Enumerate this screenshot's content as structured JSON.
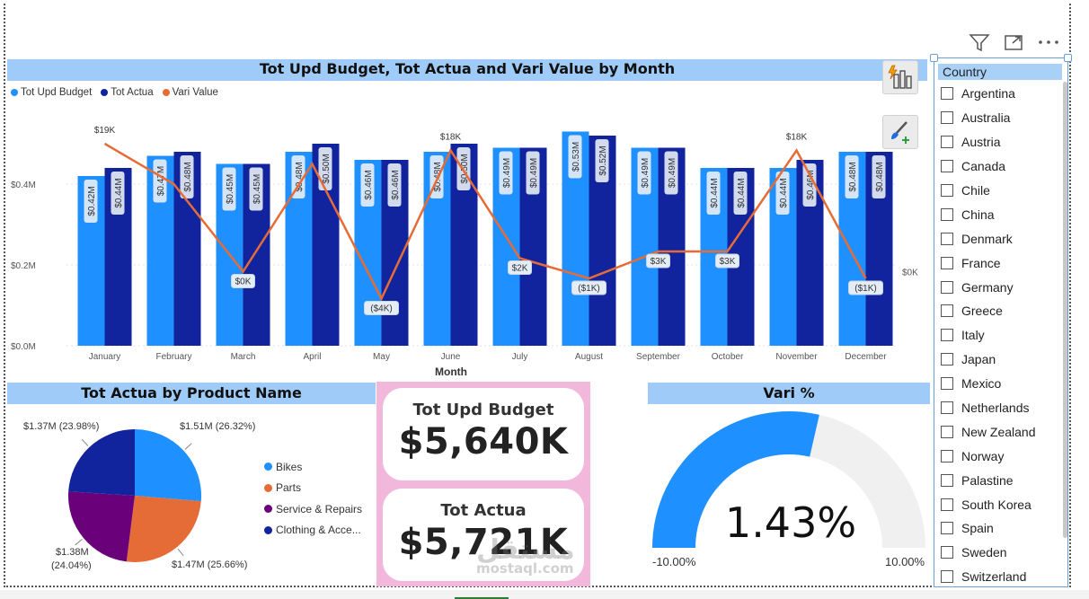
{
  "combo_chart": {
    "title": "Tot Upd Budget, Tot Actua and Vari Value by Month",
    "legend": [
      {
        "label": "Tot Upd Budget",
        "color": "#1e90ff"
      },
      {
        "label": "Tot Actua",
        "color": "#12239e"
      },
      {
        "label": "Vari Value",
        "color": "#e66c37"
      }
    ],
    "x_axis_title": "Month"
  },
  "chart_data": [
    {
      "type": "bar",
      "title": "Tot Upd Budget, Tot Actua and Vari Value by Month",
      "xlabel": "Month",
      "ylabel": "",
      "categories": [
        "January",
        "February",
        "March",
        "April",
        "May",
        "June",
        "July",
        "August",
        "September",
        "October",
        "November",
        "December"
      ],
      "series": [
        {
          "name": "Tot Upd Budget",
          "color": "#1e90ff",
          "values": [
            0.42,
            0.47,
            0.45,
            0.48,
            0.46,
            0.48,
            0.49,
            0.53,
            0.49,
            0.44,
            0.44,
            0.48
          ],
          "labels": [
            "$0.42M",
            "$0.47M",
            "$0.45M",
            "$0.48M",
            "$0.46M",
            "$0.48M",
            "$0.49M",
            "$0.53M",
            "$0.49M",
            "$0.44M",
            "$0.44M",
            "$0.48M"
          ]
        },
        {
          "name": "Tot Actua",
          "color": "#12239e",
          "values": [
            0.44,
            0.48,
            0.45,
            0.5,
            0.46,
            0.5,
            0.49,
            0.52,
            0.49,
            0.44,
            0.46,
            0.48
          ],
          "labels": [
            "$0.44M",
            "$0.48M",
            "$0.45M",
            "$0.50M",
            "$0.46M",
            "$0.50M",
            "$0.49M",
            "$0.52M",
            "$0.49M",
            "$0.44M",
            "$0.46M",
            "$0.48M"
          ]
        },
        {
          "name": "Vari Value",
          "type": "line",
          "color": "#e66c37",
          "values": [
            19,
            13,
            0,
            16,
            -4,
            18,
            2,
            -1,
            3,
            3,
            18,
            -1
          ],
          "labels": [
            "$19K",
            "",
            "$0K",
            "",
            "($4K)",
            "$18K",
            "$2K",
            "($1K)",
            "$3K",
            "$3K",
            "$18K",
            "($1K)"
          ]
        }
      ],
      "y_ticks": [
        "$0.0M",
        "$0.2M",
        "$0.4M"
      ],
      "ylim": [
        0,
        0.6
      ],
      "y2_ticks": [
        "$0K"
      ],
      "y2lim": [
        -11,
        25
      ],
      "legend_position": "top-left"
    },
    {
      "type": "pie",
      "title": "Tot Actua by Product Name",
      "categories": [
        "Bikes",
        "Parts",
        "Service & Repairs",
        "Clothing & Acce..."
      ],
      "colors": [
        "#1e90ff",
        "#e66c37",
        "#6b007b",
        "#12239e"
      ],
      "values": [
        26.32,
        25.66,
        24.04,
        23.98
      ],
      "labels": [
        "$1.51M (26.32%)",
        "$1.47M (25.66%)",
        "$1.38M (24.04%)",
        "$1.37M (23.98%)"
      ],
      "legend_position": "right"
    },
    {
      "type": "gauge",
      "title": "Vari %",
      "value": 1.43,
      "value_label": "1.43%",
      "min_label": "-10.00%",
      "max_label": "10.00%",
      "range": [
        -10,
        10
      ],
      "fill_color": "#1e90ff",
      "track_color": "#f0f0f0"
    }
  ],
  "pie_chart": {
    "title": "Tot Actua by Product Name",
    "label_bikes": "$1.51M (26.32%)",
    "label_parts": "$1.47M (25.66%)",
    "label_service_1": "$1.38M",
    "label_service_2": "(24.04%)",
    "label_clothing": "$1.37M (23.98%)",
    "legend": [
      {
        "label": "Bikes",
        "color": "#1e90ff"
      },
      {
        "label": "Parts",
        "color": "#e66c37"
      },
      {
        "label": "Service & Repairs",
        "color": "#6b007b"
      },
      {
        "label": "Clothing & Acce...",
        "color": "#12239e"
      }
    ]
  },
  "cards": {
    "budget_label": "Tot Upd Budget",
    "budget_value": "$5,640K",
    "actual_label": "Tot Actua",
    "actual_value": "$5,721K"
  },
  "gauge": {
    "title": "Vari %",
    "value_label": "1.43%",
    "min_label": "-10.00%",
    "max_label": "10.00%"
  },
  "watermark": {
    "text": "مستقل",
    "sub": "mostaql.com"
  },
  "visual_header_icons": [
    "filter-icon",
    "focus-mode-icon",
    "more-options-icon"
  ],
  "side_icons": [
    "quick-insights-icon",
    "format-painter-icon"
  ],
  "slicer": {
    "header": "Country",
    "items": [
      "Argentina",
      "Australia",
      "Austria",
      "Canada",
      "Chile",
      "China",
      "Denmark",
      "France",
      "Germany",
      "Greece",
      "Italy",
      "Japan",
      "Mexico",
      "Netherlands",
      "New Zealand",
      "Norway",
      "Palastine",
      "South Korea",
      "Spain",
      "Sweden",
      "Switzerland"
    ]
  }
}
